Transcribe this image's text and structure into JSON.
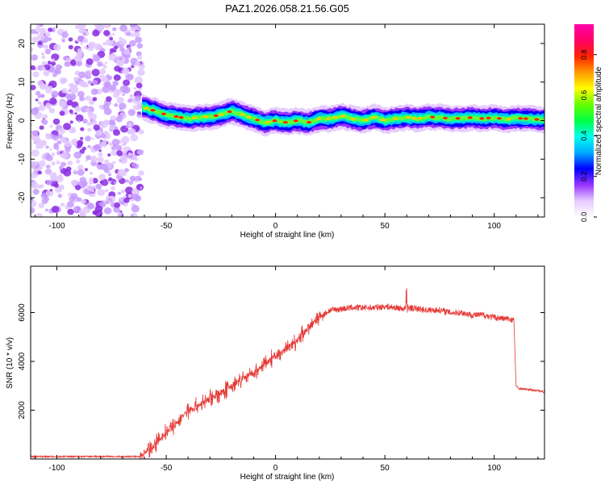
{
  "title": "PAZ1.2026.058.21.56.G05",
  "chart_data": [
    {
      "type": "heatmap",
      "name": "spectrogram",
      "xlabel": "Height of straight line (km)",
      "ylabel": "Frequency (Hz)",
      "xlim": [
        -112,
        123
      ],
      "ylim": [
        -25,
        25
      ],
      "xticks": [
        -100,
        -50,
        0,
        50,
        100
      ],
      "yticks": [
        -20,
        -10,
        0,
        10,
        20
      ],
      "noise_region_km": [
        -112,
        -61
      ],
      "ridge": {
        "x": [
          -61,
          -55,
          -50,
          -45,
          -40,
          -35,
          -30,
          -25,
          -20,
          -15,
          -10,
          -5,
          0,
          5,
          10,
          15,
          20,
          25,
          30,
          35,
          40,
          45,
          50,
          55,
          60,
          65,
          70,
          75,
          80,
          85,
          90,
          95,
          100,
          105,
          110,
          115,
          120,
          123
        ],
        "y": [
          3.5,
          2.5,
          1.5,
          1.0,
          0.5,
          0.8,
          1.0,
          1.5,
          2.5,
          1.5,
          0.5,
          -0.5,
          0.0,
          -0.5,
          0.0,
          -0.5,
          0.5,
          0.5,
          1.2,
          0.5,
          0.0,
          0.8,
          0.0,
          0.5,
          0.8,
          0.5,
          1.0,
          0.8,
          0.5,
          0.6,
          0.8,
          0.5,
          0.8,
          0.3,
          0.6,
          0.5,
          0.3,
          0.2
        ]
      }
    },
    {
      "type": "colorbar",
      "name": "colorbar",
      "label": "Normalized spectral amplitude",
      "range": [
        0,
        0.95
      ],
      "ticks": [
        "0.0",
        "0.2",
        "0.4",
        "0.6",
        "0.8"
      ],
      "tick_values": [
        0,
        0.2,
        0.4,
        0.6,
        0.8
      ],
      "colors": [
        "#ffffff",
        "#e6ccff",
        "#9933ff",
        "#0000ff",
        "#00aaff",
        "#00ffee",
        "#00ff44",
        "#66ff00",
        "#ffff00",
        "#ff9900",
        "#ff2200",
        "#ff0066",
        "#ff00aa"
      ]
    },
    {
      "type": "line",
      "name": "snr",
      "xlabel": "Height of straight line (km)",
      "ylabel": "SNR (10 * v/v)",
      "xlim": [
        -112,
        123
      ],
      "ylim": [
        0,
        7900
      ],
      "xticks": [
        -100,
        -50,
        0,
        50,
        100
      ],
      "yticks": [
        2000,
        4000,
        6000
      ],
      "color": "#e53935",
      "x": [
        -112,
        -100,
        -90,
        -80,
        -70,
        -62,
        -60,
        -55,
        -50,
        -45,
        -40,
        -35,
        -30,
        -25,
        -20,
        -15,
        -10,
        -5,
        0,
        5,
        10,
        15,
        20,
        25,
        30,
        35,
        40,
        45,
        50,
        55,
        59,
        60,
        61,
        65,
        70,
        75,
        80,
        85,
        90,
        95,
        100,
        105,
        109,
        110,
        111,
        115,
        120,
        123
      ],
      "y": [
        100,
        100,
        100,
        100,
        100,
        100,
        250,
        600,
        1100,
        1500,
        2000,
        2200,
        2500,
        2700,
        3000,
        3300,
        3500,
        3900,
        4200,
        4500,
        4900,
        5400,
        5800,
        6100,
        6150,
        6200,
        6200,
        6200,
        6250,
        6200,
        6150,
        6300,
        6200,
        6150,
        6100,
        6100,
        6000,
        6000,
        5900,
        5900,
        5800,
        5750,
        5700,
        3000,
        2900,
        2850,
        2800,
        2750
      ]
    }
  ]
}
